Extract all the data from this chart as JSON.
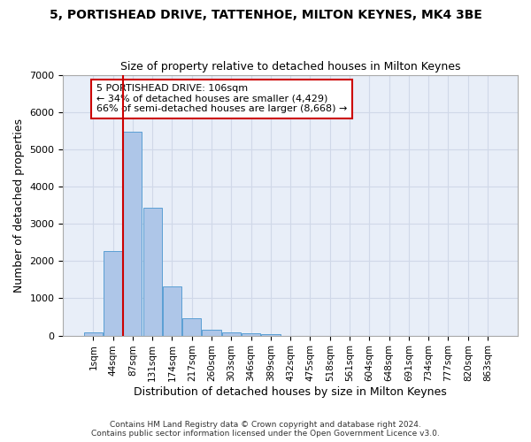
{
  "title": "5, PORTISHEAD DRIVE, TATTENHOE, MILTON KEYNES, MK4 3BE",
  "subtitle": "Size of property relative to detached houses in Milton Keynes",
  "xlabel": "Distribution of detached houses by size in Milton Keynes",
  "ylabel": "Number of detached properties",
  "footer_line1": "Contains HM Land Registry data © Crown copyright and database right 2024.",
  "footer_line2": "Contains public sector information licensed under the Open Government Licence v3.0.",
  "bin_labels": [
    "1sqm",
    "44sqm",
    "87sqm",
    "131sqm",
    "174sqm",
    "217sqm",
    "260sqm",
    "303sqm",
    "346sqm",
    "389sqm",
    "432sqm",
    "475sqm",
    "518sqm",
    "561sqm",
    "604sqm",
    "648sqm",
    "691sqm",
    "734sqm",
    "777sqm",
    "820sqm",
    "863sqm"
  ],
  "bar_values": [
    75,
    2270,
    5470,
    3440,
    1310,
    470,
    160,
    90,
    55,
    30,
    0,
    0,
    0,
    0,
    0,
    0,
    0,
    0,
    0,
    0,
    0
  ],
  "bar_color": "#aec6e8",
  "bar_edge_color": "#5a9fd4",
  "grid_color": "#d0d8e8",
  "background_color": "#e8eef8",
  "annotation_text": "5 PORTISHEAD DRIVE: 106sqm\n← 34% of detached houses are smaller (4,429)\n66% of semi-detached houses are larger (8,668) →",
  "vline_x_index": 2,
  "vline_color": "#cc0000",
  "annotation_box_edgecolor": "#cc0000",
  "ylim": [
    0,
    7000
  ],
  "yticks": [
    0,
    1000,
    2000,
    3000,
    4000,
    5000,
    6000,
    7000
  ]
}
